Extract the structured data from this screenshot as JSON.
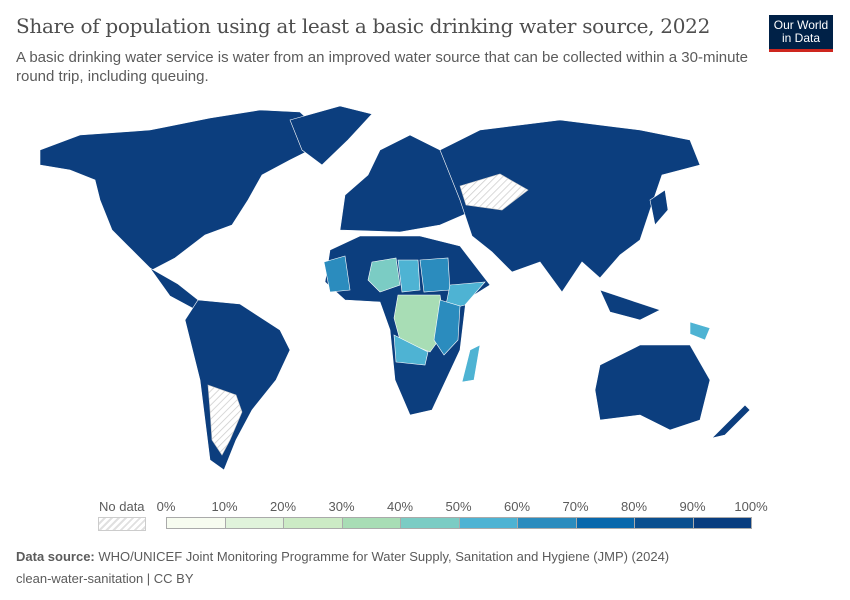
{
  "title": "Share of population using at least a basic drinking water source, 2022",
  "subtitle": "A basic drinking water service is water from an improved water source that can be collected within a 30-minute round trip, including queuing.",
  "logo": "Our World in Data",
  "legend": {
    "no_data_label": "No data",
    "ticks": [
      "0%",
      "10%",
      "20%",
      "30%",
      "40%",
      "50%",
      "60%",
      "70%",
      "80%",
      "90%",
      "100%"
    ],
    "colors": [
      "#f7fcf0",
      "#e0f3db",
      "#ccebc5",
      "#a8ddb5",
      "#7bccc4",
      "#4eb3d3",
      "#2b8cbe",
      "#0868ac",
      "#0a4f8f",
      "#083d7f"
    ]
  },
  "footer": {
    "source_label": "Data source:",
    "source": "WHO/UNICEF Joint Monitoring Programme for Water Supply, Sanitation and Hygiene (JMP) (2024)",
    "slug": "clean-water-sanitation | CC BY"
  },
  "chart_data": {
    "type": "choropleth",
    "title": "Share of population using at least a basic drinking water source, 2022",
    "unit": "%",
    "range": [
      0,
      100
    ],
    "regions": [
      {
        "name": "North America",
        "bin": "90-100%"
      },
      {
        "name": "South America",
        "bin": "90-100%"
      },
      {
        "name": "Europe",
        "bin": "90-100%"
      },
      {
        "name": "Russia",
        "bin": "90-100%"
      },
      {
        "name": "Kazakhstan",
        "bin": "No data"
      },
      {
        "name": "Argentina",
        "bin": "No data"
      },
      {
        "name": "Australia",
        "bin": "90-100%"
      },
      {
        "name": "DR Congo",
        "bin": "30-40%"
      },
      {
        "name": "Chad",
        "bin": "40-50%"
      },
      {
        "name": "Ethiopia",
        "bin": "50-60%"
      },
      {
        "name": "Madagascar",
        "bin": "50-60%"
      },
      {
        "name": "Papua New Guinea",
        "bin": "50-60%"
      }
    ]
  }
}
